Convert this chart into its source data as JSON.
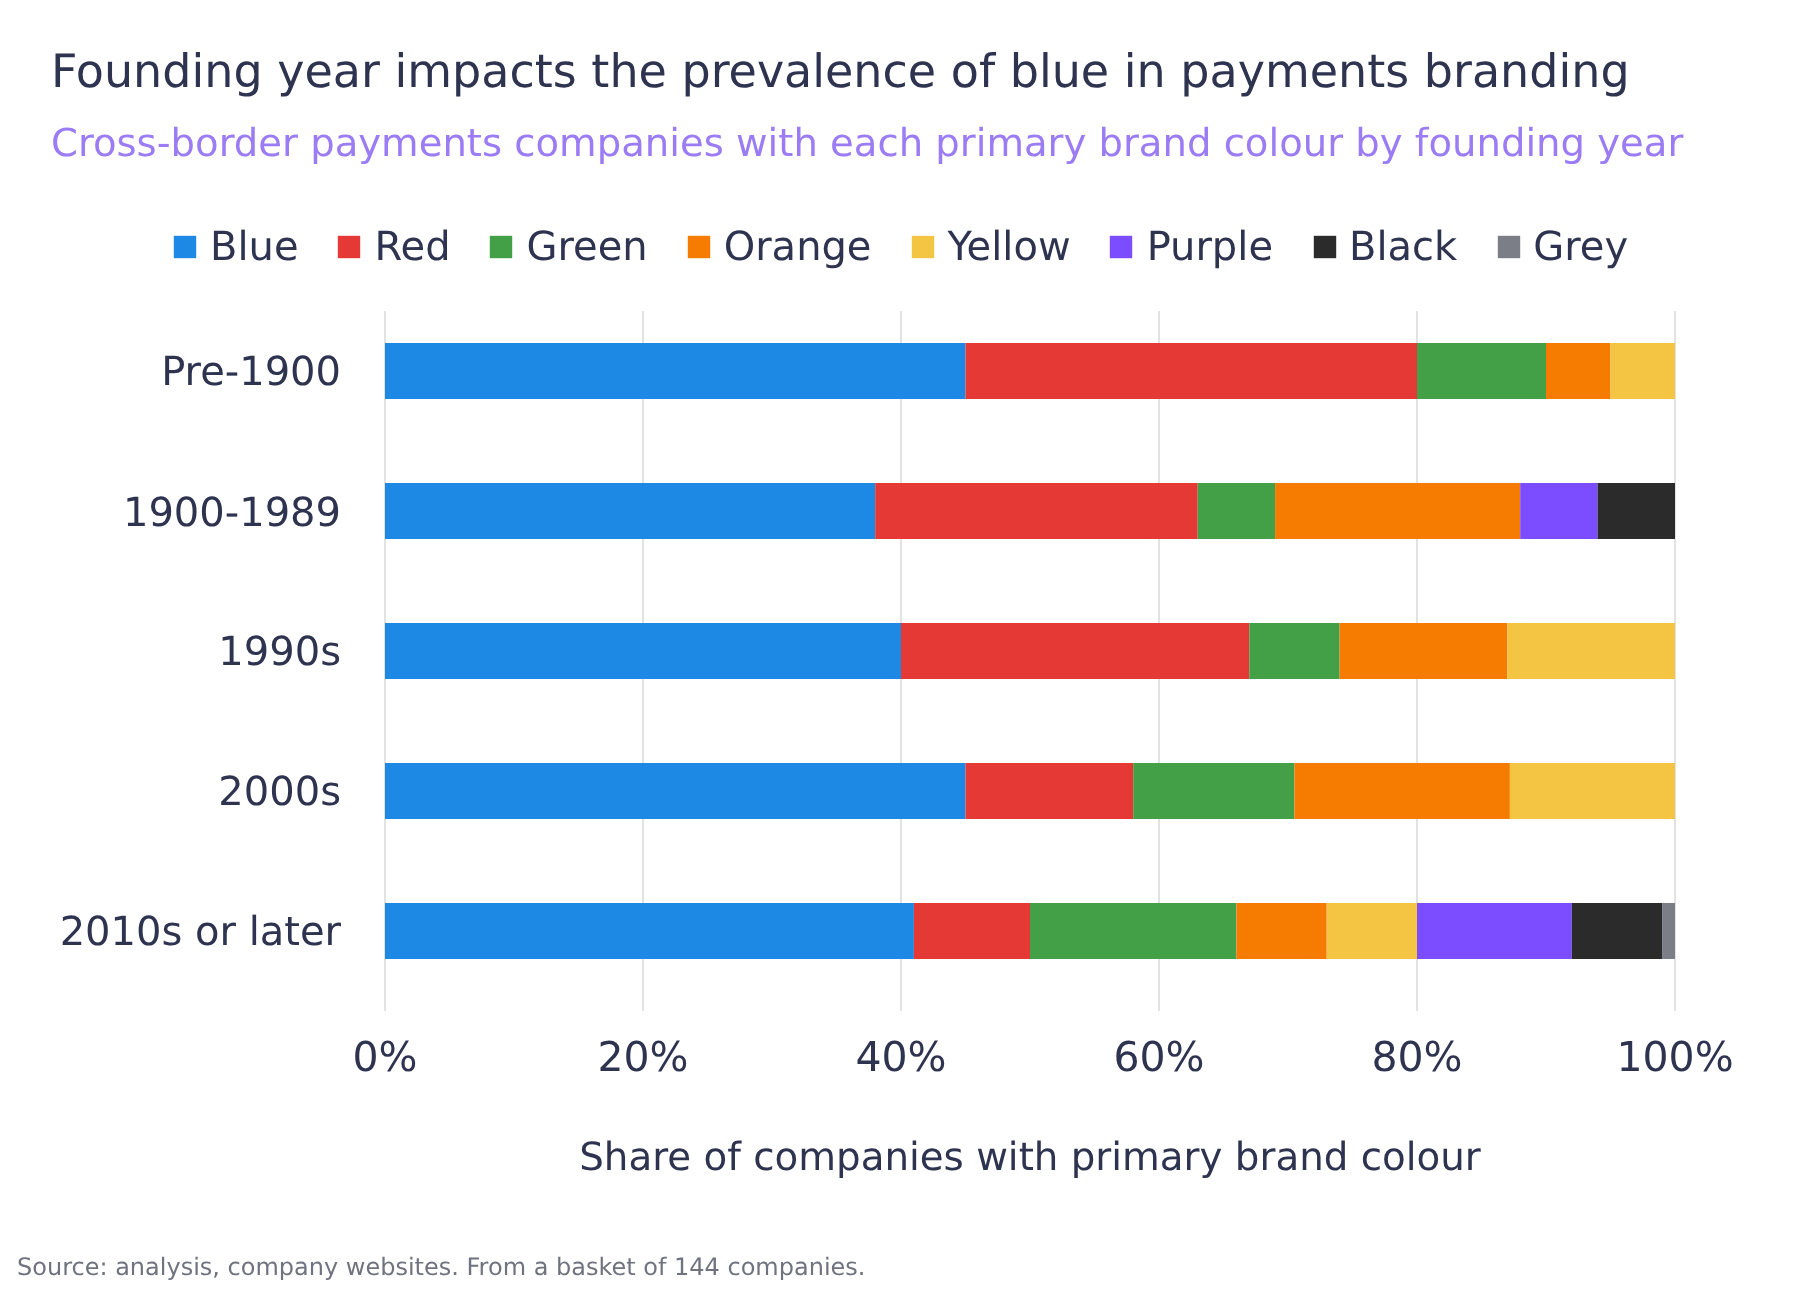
{
  "chart_data": {
    "type": "bar",
    "orientation": "horizontal",
    "stacked": true,
    "title": "Founding year impacts the prevalence of blue in payments branding",
    "subtitle": "Cross-border payments companies with each primary brand colour by founding year",
    "xlabel": "Share of companies with primary brand colour",
    "categories": [
      "Pre-1900",
      "1900-1989",
      "1990s",
      "2000s",
      "2010s or later"
    ],
    "series": [
      {
        "name": "Blue",
        "color": "#1e88e5",
        "values": [
          45,
          38,
          40,
          45,
          41
        ]
      },
      {
        "name": "Red",
        "color": "#e53935",
        "values": [
          35,
          25,
          27,
          13,
          9
        ]
      },
      {
        "name": "Green",
        "color": "#43a047",
        "values": [
          10,
          6,
          7,
          12.5,
          16
        ]
      },
      {
        "name": "Orange",
        "color": "#f57c00",
        "values": [
          5,
          19,
          13,
          16.7,
          7
        ]
      },
      {
        "name": "Yellow",
        "color": "#f4c542",
        "values": [
          5,
          null,
          13,
          12.8,
          7
        ]
      },
      {
        "name": "Purple",
        "color": "#7c4dff",
        "values": [
          null,
          6,
          null,
          null,
          12
        ]
      },
      {
        "name": "Black",
        "color": "#2b2b2b",
        "values": [
          null,
          6,
          null,
          null,
          7
        ]
      },
      {
        "name": "Grey",
        "color": "#7b7e87",
        "values": [
          null,
          null,
          null,
          null,
          1
        ]
      }
    ],
    "xlim": [
      0,
      100
    ],
    "xticks": [
      {
        "value": 0,
        "label": "0%"
      },
      {
        "value": 20,
        "label": "20%"
      },
      {
        "value": 40,
        "label": "40%"
      },
      {
        "value": 60,
        "label": "60%"
      },
      {
        "value": 80,
        "label": "80%"
      },
      {
        "value": 100,
        "label": "100%"
      }
    ],
    "grid": "x",
    "legend": "top",
    "annotations": [
      "Source: analysis, company websites. From a basket of 144 companies."
    ]
  }
}
